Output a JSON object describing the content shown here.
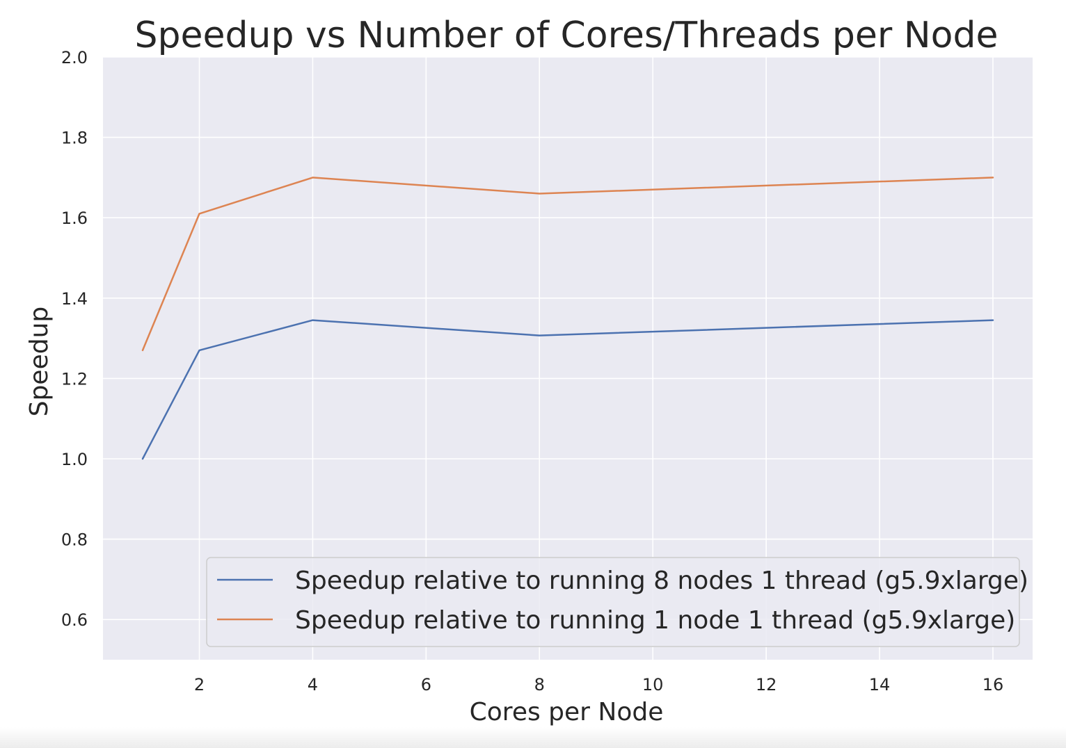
{
  "chart_data": {
    "type": "line",
    "title": "Speedup vs Number of Cores/Threads per Node",
    "xlabel": "Cores per Node",
    "ylabel": "Speedup",
    "xlim": [
      0.3,
      16.7
    ],
    "ylim": [
      0.5,
      2.0
    ],
    "xticks": [
      "2",
      "4",
      "6",
      "8",
      "10",
      "12",
      "14",
      "16"
    ],
    "yticks": [
      "0.6",
      "0.8",
      "1.0",
      "1.2",
      "1.4",
      "1.6",
      "1.8",
      "2.0"
    ],
    "grid": true,
    "legend_position": "lower right",
    "series": [
      {
        "name": "Speedup relative to running 8 nodes 1 thread (g5.9xlarge)",
        "color": "#4c72b0",
        "x": [
          1,
          2,
          4,
          8,
          16
        ],
        "y": [
          1.0,
          1.27,
          1.345,
          1.307,
          1.345
        ]
      },
      {
        "name": "Speedup relative to running 1 node 1 thread (g5.9xlarge)",
        "color": "#dd8452",
        "x": [
          1,
          2,
          4,
          8,
          16
        ],
        "y": [
          1.27,
          1.61,
          1.7,
          1.66,
          1.7
        ]
      }
    ]
  }
}
